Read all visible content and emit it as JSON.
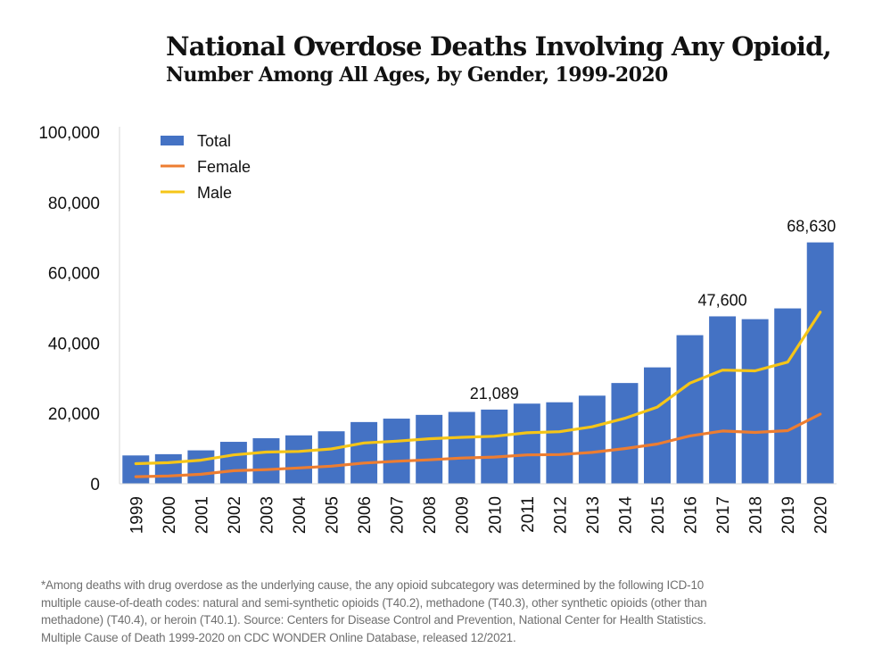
{
  "title_line1": "National Overdose Deaths Involving Any Opioid,",
  "title_line2": "Number Among All Ages, by Gender, 1999-2020",
  "colors": {
    "total": "#4472c4",
    "female": "#ed7d31",
    "male": "#f5c518",
    "axis": "#d9d9d9",
    "text": "#111111"
  },
  "chart_data": {
    "type": "bar",
    "title": "National Overdose Deaths Involving Any Opioid, Number Among All Ages, by Gender, 1999-2020",
    "xlabel": "",
    "ylabel": "",
    "ylim": [
      0,
      100000
    ],
    "yticks": [
      0,
      20000,
      40000,
      60000,
      80000,
      100000
    ],
    "ytick_labels": [
      "0",
      "20,000",
      "40,000",
      "60,000",
      "80,000",
      "100,000"
    ],
    "grid": false,
    "legend_position": "top-left",
    "categories": [
      "1999",
      "2000",
      "2001",
      "2002",
      "2003",
      "2004",
      "2005",
      "2006",
      "2007",
      "2008",
      "2009",
      "2010",
      "2011",
      "2012",
      "2013",
      "2014",
      "2015",
      "2016",
      "2017",
      "2018",
      "2019",
      "2020"
    ],
    "series": [
      {
        "name": "Total",
        "kind": "bar",
        "values": [
          8048,
          8407,
          9496,
          11920,
          12940,
          13756,
          14918,
          17545,
          18516,
          19582,
          20422,
          21089,
          22784,
          23166,
          25052,
          28647,
          33091,
          42249,
          47600,
          46802,
          49860,
          68630
        ]
      },
      {
        "name": "Female",
        "kind": "line",
        "values": [
          2000,
          2200,
          2700,
          3700,
          4000,
          4500,
          5000,
          5900,
          6400,
          6800,
          7300,
          7600,
          8200,
          8300,
          8900,
          10000,
          11300,
          13600,
          15000,
          14600,
          15100,
          19800
        ]
      },
      {
        "name": "Male",
        "kind": "line",
        "values": [
          5700,
          6000,
          6700,
          8200,
          9000,
          9200,
          9900,
          11600,
          12100,
          12800,
          13200,
          13500,
          14500,
          14800,
          16200,
          18600,
          21800,
          28600,
          32300,
          32100,
          34600,
          48800
        ]
      }
    ],
    "data_labels": [
      {
        "category": "2010",
        "text": "21,089"
      },
      {
        "category": "2017",
        "text": "47,600"
      },
      {
        "category": "2020",
        "text": "68,630"
      }
    ]
  },
  "legend": [
    {
      "label": "Total",
      "marker": "box"
    },
    {
      "label": "Female",
      "marker": "line"
    },
    {
      "label": "Male",
      "marker": "line"
    }
  ],
  "footnote": [
    "*Among deaths with drug overdose as the underlying cause, the any opioid subcategory was determined by the following ICD-10",
    "multiple cause-of-death codes: natural and semi-synthetic opioids (T40.2), methadone (T40.3), other synthetic opioids (other than",
    "methadone) (T40.4), or heroin (T40.1).  Source: Centers for Disease Control and Prevention, National Center for Health Statistics.",
    "Multiple Cause of Death 1999-2020 on CDC WONDER Online Database, released 12/2021."
  ]
}
